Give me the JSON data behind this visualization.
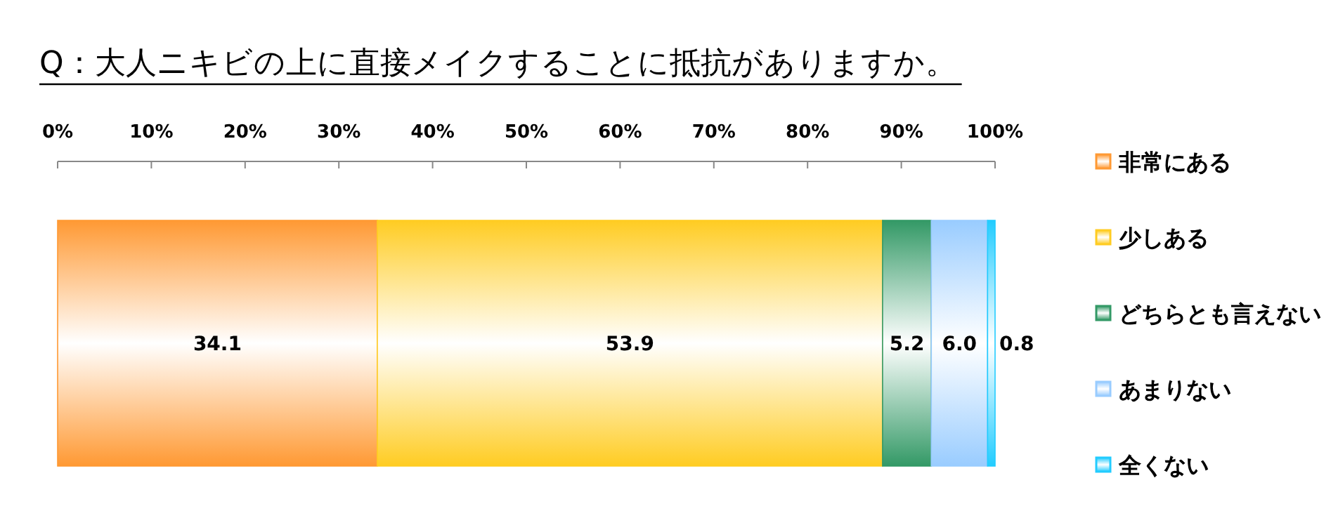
{
  "chart_data": {
    "type": "bar",
    "orientation": "horizontal",
    "stacked": true,
    "title": "Q：大人ニキビの上に直接メイクすることに抵抗がありますか。",
    "categories": [
      null
    ],
    "xlim": [
      0,
      100
    ],
    "xticks": [
      {
        "value": 0,
        "label": "0%"
      },
      {
        "value": 10,
        "label": "10%"
      },
      {
        "value": 20,
        "label": "20%"
      },
      {
        "value": 30,
        "label": "30%"
      },
      {
        "value": 40,
        "label": "40%"
      },
      {
        "value": 50,
        "label": "50%"
      },
      {
        "value": 60,
        "label": "60%"
      },
      {
        "value": 70,
        "label": "70%"
      },
      {
        "value": 80,
        "label": "80%"
      },
      {
        "value": 90,
        "label": "90%"
      },
      {
        "value": 100,
        "label": "100%"
      }
    ],
    "legend": "right",
    "series": [
      {
        "name": "非常にある",
        "color": "#ff9933",
        "values": [
          34.1
        ],
        "value_labels": [
          "34.1"
        ]
      },
      {
        "name": "少しある",
        "color": "#ffcc22",
        "values": [
          53.9
        ],
        "value_labels": [
          "53.9"
        ]
      },
      {
        "name": "どちらとも言えない",
        "color": "#339966",
        "values": [
          5.2
        ],
        "value_labels": [
          "5.2"
        ]
      },
      {
        "name": "あまりない",
        "color": "#99ccff",
        "values": [
          6.0
        ],
        "value_labels": [
          "6.0"
        ]
      },
      {
        "name": "全くない",
        "color": "#22ccff",
        "values": [
          0.8
        ],
        "value_labels": [
          "0.8"
        ]
      }
    ]
  }
}
